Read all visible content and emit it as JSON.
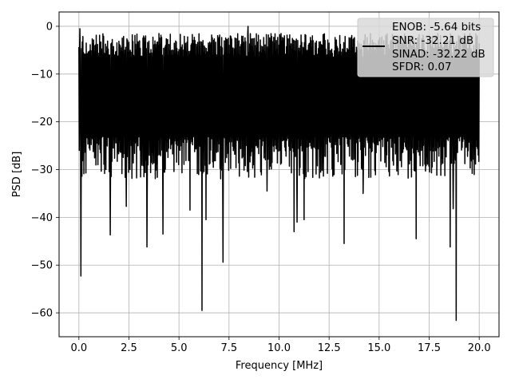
{
  "chart_data": {
    "type": "line",
    "title": "",
    "xlabel": "Frequency [MHz]",
    "ylabel": "PSD [dB]",
    "xlim": [
      -0.99,
      20.99
    ],
    "ylim": [
      -65,
      3
    ],
    "x_ticks": [
      0.0,
      2.5,
      5.0,
      7.5,
      10.0,
      12.5,
      15.0,
      17.5,
      20.0
    ],
    "x_tick_labels": [
      "0.0",
      "2.5",
      "5.0",
      "7.5",
      "10.0",
      "12.5",
      "15.0",
      "17.5",
      "20.0"
    ],
    "y_ticks": [
      0,
      -10,
      -20,
      -30,
      -40,
      -50,
      -60
    ],
    "y_tick_labels": [
      "0",
      "−10",
      "−20",
      "−30",
      "−40",
      "−50",
      "−60"
    ],
    "grid": true,
    "legend_position": "top-right",
    "series": [
      {
        "color": "#000000",
        "x_range": [
          0.0,
          20.0
        ],
        "band": {
          "top_typical": -4,
          "bottom_typical": -27,
          "max": 0.0
        },
        "peaks": [
          {
            "x": 0.05,
            "y": -0.5
          },
          {
            "x": 8.45,
            "y": 0.0
          }
        ],
        "dips": [
          {
            "x": 0.1,
            "y": -52.3
          },
          {
            "x": 1.57,
            "y": -43.7
          },
          {
            "x": 2.37,
            "y": -37.7
          },
          {
            "x": 3.4,
            "y": -46.2
          },
          {
            "x": 4.2,
            "y": -43.5
          },
          {
            "x": 5.55,
            "y": -38.5
          },
          {
            "x": 6.15,
            "y": -59.5
          },
          {
            "x": 6.35,
            "y": -40.5
          },
          {
            "x": 7.2,
            "y": -49.4
          },
          {
            "x": 9.4,
            "y": -34.5
          },
          {
            "x": 10.75,
            "y": -43.0
          },
          {
            "x": 10.9,
            "y": -41.0
          },
          {
            "x": 11.25,
            "y": -40.5
          },
          {
            "x": 13.25,
            "y": -45.5
          },
          {
            "x": 14.2,
            "y": -35.0
          },
          {
            "x": 16.85,
            "y": -44.5
          },
          {
            "x": 18.55,
            "y": -46.2
          },
          {
            "x": 18.7,
            "y": -38.2
          },
          {
            "x": 18.85,
            "y": -61.6
          }
        ]
      }
    ],
    "legend": {
      "lines": [
        "ENOB: -5.64 bits",
        "SNR: -32.21 dB",
        "SINAD: -32.22 dB",
        "SFDR: 0.07"
      ]
    }
  }
}
